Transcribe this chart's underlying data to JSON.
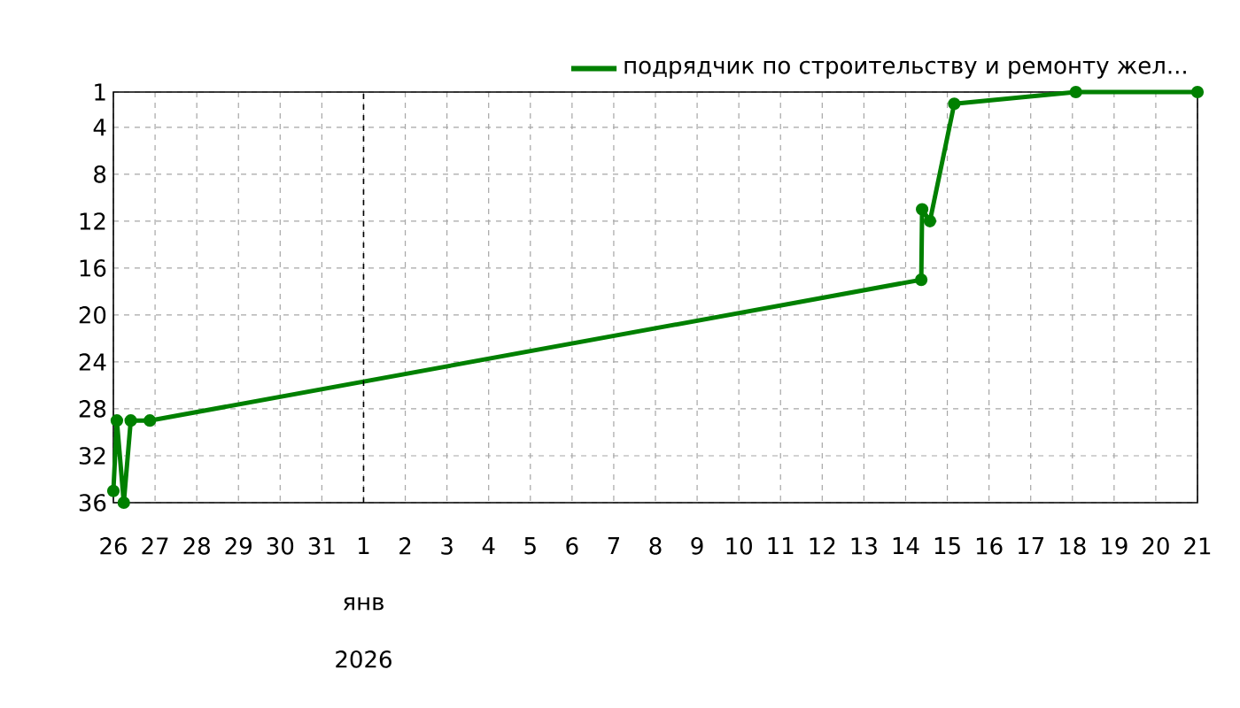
{
  "chart_data": {
    "type": "line",
    "x": [
      "2025-12-26T00:00",
      "2025-12-26T02:00",
      "2025-12-26T06:00",
      "2025-12-26T10:00",
      "2025-12-26T21:00",
      "2026-01-14T09:00",
      "2026-01-14T09:30",
      "2026-01-14T14:00",
      "2026-01-15T04:00",
      "2026-01-18T02:00",
      "2026-01-21T00:00"
    ],
    "series": [
      {
        "name": "подрядчик по строительству и ремонту жел...",
        "color": "#008000",
        "values": [
          35,
          29,
          36,
          29,
          29,
          17,
          11,
          12,
          2,
          1,
          1
        ]
      }
    ],
    "xlim": [
      "2025-12-26",
      "2026-01-21"
    ],
    "xticks": [
      {
        "value": "2025-12-26",
        "label": "26"
      },
      {
        "value": "2025-12-27",
        "label": "27"
      },
      {
        "value": "2025-12-28",
        "label": "28"
      },
      {
        "value": "2025-12-29",
        "label": "29"
      },
      {
        "value": "2025-12-30",
        "label": "30"
      },
      {
        "value": "2025-12-31",
        "label": "31"
      },
      {
        "value": "2026-01-01",
        "label": "1"
      },
      {
        "value": "2026-01-02",
        "label": "2"
      },
      {
        "value": "2026-01-03",
        "label": "3"
      },
      {
        "value": "2026-01-04",
        "label": "4"
      },
      {
        "value": "2026-01-05",
        "label": "5"
      },
      {
        "value": "2026-01-06",
        "label": "6"
      },
      {
        "value": "2026-01-07",
        "label": "7"
      },
      {
        "value": "2026-01-08",
        "label": "8"
      },
      {
        "value": "2026-01-09",
        "label": "9"
      },
      {
        "value": "2026-01-10",
        "label": "10"
      },
      {
        "value": "2026-01-11",
        "label": "11"
      },
      {
        "value": "2026-01-12",
        "label": "12"
      },
      {
        "value": "2026-01-13",
        "label": "13"
      },
      {
        "value": "2026-01-14",
        "label": "14"
      },
      {
        "value": "2026-01-15",
        "label": "15"
      },
      {
        "value": "2026-01-16",
        "label": "16"
      },
      {
        "value": "2026-01-17",
        "label": "17"
      },
      {
        "value": "2026-01-18",
        "label": "18"
      },
      {
        "value": "2026-01-19",
        "label": "19"
      },
      {
        "value": "2026-01-20",
        "label": "20"
      },
      {
        "value": "2026-01-21",
        "label": "21"
      }
    ],
    "ylim": [
      36,
      1
    ],
    "yticks": [
      1,
      4,
      8,
      12,
      16,
      20,
      24,
      28,
      32,
      36
    ],
    "ref_lines": [
      {
        "axis": "x",
        "value": "2026-01-01",
        "color": "#000000",
        "line_style": "dashed"
      }
    ],
    "annotations": [
      "янв",
      "2026"
    ],
    "grid": true,
    "legend": "top right",
    "marker": "circle",
    "line_style": "solid"
  }
}
